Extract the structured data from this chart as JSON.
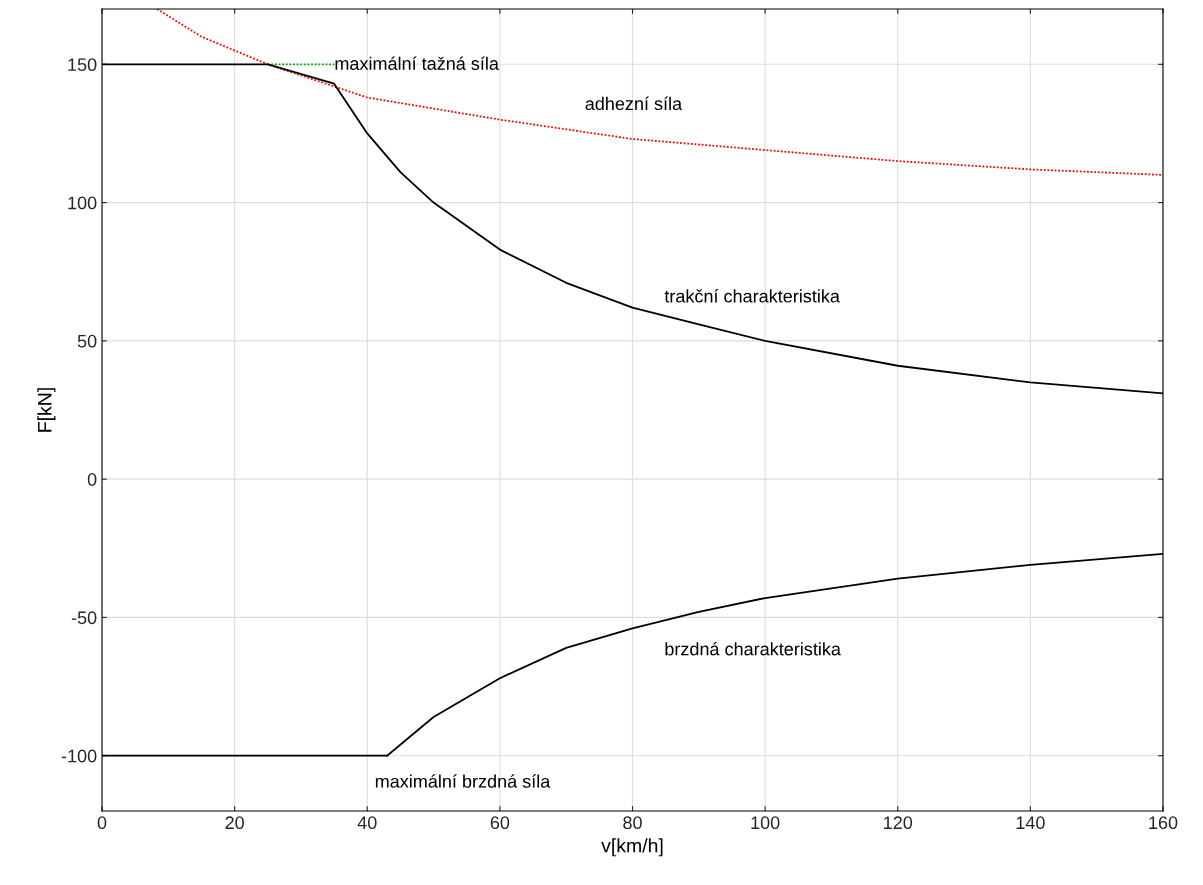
{
  "chart_data": {
    "type": "line",
    "xlabel": "v[km/h]",
    "ylabel": "F[kN]",
    "xlim": [
      0,
      160
    ],
    "ylim": [
      -120,
      170
    ],
    "xticks": [
      0,
      20,
      40,
      60,
      80,
      100,
      120,
      140,
      160
    ],
    "yticks": [
      -100,
      -50,
      0,
      50,
      100,
      150
    ],
    "grid": true,
    "marker": "none",
    "series": [
      {
        "name": "adhezní síla",
        "color": "#ff0000",
        "line_style": "dotted",
        "x": [
          8.3,
          15,
          25,
          35,
          40,
          50,
          60,
          80,
          100,
          120,
          140,
          160
        ],
        "values": [
          170,
          160,
          150,
          142,
          138,
          134,
          130,
          123,
          119,
          115,
          112,
          110
        ]
      },
      {
        "name": "maximální tažná síla",
        "color": "#00aa00",
        "line_style": "dotted",
        "x": [
          25,
          35
        ],
        "values": [
          150,
          150
        ]
      },
      {
        "name": "trakční charakteristika",
        "color": "#000000",
        "line_style": "solid",
        "x": [
          0,
          25,
          35,
          40,
          45,
          50,
          60,
          70,
          80,
          90,
          100,
          120,
          140,
          160
        ],
        "values": [
          150,
          150,
          143,
          125,
          111,
          100,
          83,
          71,
          62,
          56,
          50,
          41,
          35,
          31
        ]
      },
      {
        "name": "maximální brzdná síla",
        "color": "#000000",
        "line_style": "solid",
        "x": [
          0,
          43
        ],
        "values": [
          -100,
          -100
        ]
      },
      {
        "name": "brzdná charakteristika",
        "color": "#000000",
        "line_style": "solid",
        "x": [
          43,
          50,
          60,
          70,
          80,
          90,
          100,
          120,
          140,
          160
        ],
        "values": [
          -100,
          -86,
          -72,
          -61,
          -54,
          -48,
          -43,
          -36,
          -31,
          -27
        ]
      }
    ]
  }
}
